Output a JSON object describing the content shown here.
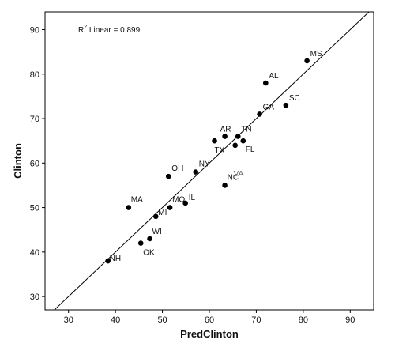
{
  "chart_data": {
    "type": "scatter",
    "xlabel": "PredClinton",
    "ylabel": "Clinton",
    "xlim": [
      25,
      95
    ],
    "ylim": [
      27,
      94
    ],
    "xticks": [
      30,
      40,
      50,
      60,
      70,
      80,
      90
    ],
    "yticks": [
      30,
      40,
      50,
      60,
      70,
      80,
      90
    ],
    "fit_line": [
      [
        25,
        25
      ],
      [
        95,
        95
      ]
    ],
    "annotation": {
      "prefix": "R",
      "sup": "2",
      "text": " Linear = 0.899"
    },
    "points": [
      {
        "label": "MS",
        "x": 80.8,
        "y": 83.0
      },
      {
        "label": "AL",
        "x": 72.0,
        "y": 78.0
      },
      {
        "label": "SC",
        "x": 76.3,
        "y": 73.0
      },
      {
        "label": "GA",
        "x": 70.7,
        "y": 71.0
      },
      {
        "label": "AR",
        "x": 63.3,
        "y": 66.0
      },
      {
        "label": "TN",
        "x": 66.1,
        "y": 66.0
      },
      {
        "label": "TX",
        "x": 61.1,
        "y": 65.0
      },
      {
        "label": "FL",
        "x": 67.2,
        "y": 65.0
      },
      {
        "label": "VA",
        "x": 65.5,
        "y": 64.0
      },
      {
        "label": "OH",
        "x": 51.3,
        "y": 57.0
      },
      {
        "label": "NY",
        "x": 57.1,
        "y": 58.0
      },
      {
        "label": "NC",
        "x": 63.3,
        "y": 55.0
      },
      {
        "label": "MA",
        "x": 42.8,
        "y": 50.0
      },
      {
        "label": "MO",
        "x": 51.6,
        "y": 50.0
      },
      {
        "label": "IL",
        "x": 54.9,
        "y": 51.0
      },
      {
        "label": "MI",
        "x": 48.6,
        "y": 48.0
      },
      {
        "label": "WI",
        "x": 47.3,
        "y": 43.0
      },
      {
        "label": "OK",
        "x": 45.4,
        "y": 42.0
      },
      {
        "label": "NH",
        "x": 38.4,
        "y": 38.0
      }
    ]
  }
}
